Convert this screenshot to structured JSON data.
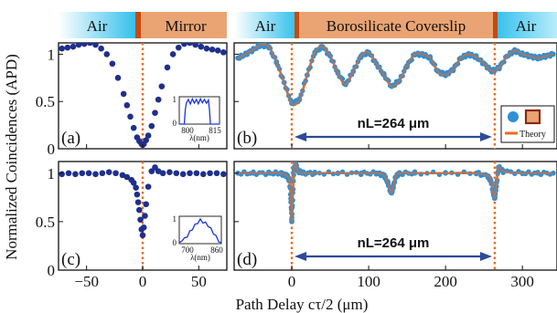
{
  "chart_data": {
    "type": "scatter",
    "ylabel": "Normalized Coincidences (APD)",
    "xlabel": "Path Delay cτ/2 (μm)",
    "colors": {
      "air_band": "#34c0ec",
      "coverslip_band": "#eaa474",
      "interface_line": "#c8490c",
      "dark_points": "#1f2f8c",
      "light_points": "#2e8ed6",
      "theory": "#f06a1e",
      "arrow": "#2c4a9a",
      "inset": "#1a35e0"
    },
    "legend": {
      "theory_label": "Theory",
      "position": "right"
    },
    "panels": [
      {
        "id": "a",
        "label": "(a)",
        "xlim": [
          -75,
          75
        ],
        "ylim": [
          0,
          1.12
        ],
        "yticks": [
          0,
          0.5,
          1
        ],
        "ytick_labels": [
          "0",
          "0.5",
          "1"
        ],
        "band_labels": [
          "Air",
          "Mirror"
        ],
        "interfaces": [
          0
        ],
        "series": [
          {
            "x": [
              -72,
              -67,
              -62,
              -57,
              -52,
              -47,
              -42,
              -37,
              -32,
              -27,
              -22,
              -17,
              -14,
              -11,
              -8,
              -5,
              -3,
              -1,
              0,
              1,
              3,
              5,
              8,
              11,
              14,
              17,
              22,
              27,
              32,
              37,
              42,
              47,
              52,
              57,
              62,
              67,
              72
            ],
            "y": [
              1.06,
              1.07,
              1.08,
              1.1,
              1.11,
              1.12,
              1.1,
              1.06,
              1.0,
              0.9,
              0.75,
              0.58,
              0.46,
              0.34,
              0.22,
              0.12,
              0.08,
              0.05,
              0.04,
              0.05,
              0.09,
              0.14,
              0.24,
              0.38,
              0.52,
              0.66,
              0.86,
              1.0,
              1.07,
              1.11,
              1.12,
              1.1,
              1.08,
              1.06,
              1.05,
              1.04,
              1.02
            ]
          }
        ],
        "inset": {
          "type": "spectrum",
          "xlabel": "λ(nm)",
          "xtick_labels": [
            "800",
            "815"
          ],
          "ytick_labels": [
            "1",
            "0"
          ],
          "x": [
            785,
            790,
            791,
            792,
            794,
            796,
            798,
            800,
            802,
            804,
            806,
            808,
            810,
            812,
            814,
            815,
            816,
            820,
            825
          ],
          "y": [
            0,
            0,
            0.5,
            0.85,
            0.9,
            0.82,
            0.92,
            0.86,
            0.9,
            0.83,
            0.92,
            0.87,
            0.9,
            0.85,
            0.88,
            0.6,
            0,
            0,
            0
          ]
        }
      },
      {
        "id": "b",
        "label": "(b)",
        "xlim": [
          -75,
          345
        ],
        "ylim": [
          0,
          1.12
        ],
        "band_labels": [
          "Air",
          "Borosilicate Coverslip",
          "Air"
        ],
        "interfaces": [
          0,
          264
        ],
        "annotation": "nL=264 μm",
        "series": [
          {
            "name": "",
            "x": [
              -70,
              -60,
              -50,
              -40,
              -30,
              -20,
              -10,
              0,
              10,
              20,
              30,
              40,
              50,
              60,
              70,
              80,
              90,
              100,
              110,
              120,
              130,
              140,
              150,
              160,
              170,
              180,
              190,
              200,
              210,
              220,
              230,
              240,
              250,
              260,
              270,
              280,
              290,
              300,
              310,
              320,
              330,
              340
            ],
            "y": [
              0.96,
              1.0,
              1.05,
              1.1,
              1.08,
              0.92,
              0.7,
              0.48,
              0.52,
              0.78,
              1.02,
              1.08,
              0.98,
              0.8,
              0.68,
              0.82,
              0.98,
              1.02,
              0.9,
              0.78,
              0.66,
              0.72,
              0.88,
              1.0,
              1.0,
              0.96,
              0.82,
              0.78,
              0.84,
              0.96,
              1.0,
              0.97,
              0.9,
              0.82,
              0.86,
              0.98,
              1.04,
              1.0,
              0.98,
              0.96,
              0.98,
              1.0
            ]
          }
        ]
      },
      {
        "id": "c",
        "label": "(c)",
        "xlim": [
          -75,
          75
        ],
        "ylim": [
          0,
          1.12
        ],
        "yticks": [
          0,
          0.5,
          1
        ],
        "ytick_labels": [
          "0",
          "0.5",
          "1"
        ],
        "xticks": [
          -50,
          0,
          50
        ],
        "xtick_labels": [
          "−50",
          "0",
          "50"
        ],
        "interfaces": [
          0
        ],
        "series": [
          {
            "x": [
              -72,
              -66,
              -60,
              -54,
              -48,
              -42,
              -36,
              -30,
              -24,
              -18,
              -14,
              -10,
              -8,
              -6,
              -5,
              -4,
              -3,
              -2,
              -1,
              0,
              1,
              2,
              3,
              5,
              8,
              11,
              14,
              18,
              24,
              30,
              36,
              42,
              48,
              54,
              60,
              66,
              72
            ],
            "y": [
              0.99,
              1.0,
              0.99,
              1.0,
              1.0,
              0.99,
              1.0,
              1.01,
              1.0,
              0.98,
              0.96,
              0.93,
              0.9,
              0.85,
              0.78,
              0.7,
              0.62,
              0.52,
              0.42,
              0.36,
              0.44,
              0.56,
              0.68,
              0.86,
              1.02,
              1.06,
              1.02,
              1.0,
              1.01,
              1.0,
              0.99,
              1.0,
              1.0,
              0.99,
              1.0,
              1.0,
              0.99
            ]
          }
        ],
        "inset": {
          "type": "spectrum",
          "xlabel": "λ(nm)",
          "xtick_labels": [
            "700",
            "860"
          ],
          "ytick_labels": [
            "1",
            "0"
          ],
          "x": [
            700,
            710,
            720,
            730,
            740,
            750,
            760,
            770,
            780,
            790,
            800,
            810,
            820,
            830,
            840,
            850,
            860
          ],
          "y": [
            0.04,
            0.1,
            0.18,
            0.3,
            0.44,
            0.58,
            0.7,
            0.82,
            0.9,
            0.84,
            0.78,
            0.7,
            0.56,
            0.42,
            0.26,
            0.12,
            0.04
          ]
        }
      },
      {
        "id": "d",
        "label": "(d)",
        "xlim": [
          -75,
          345
        ],
        "ylim": [
          0,
          1.12
        ],
        "xticks": [
          0,
          100,
          200,
          300
        ],
        "xtick_labels": [
          "0",
          "100",
          "200",
          "300"
        ],
        "interfaces": [
          0,
          264
        ],
        "annotation": "nL=264 μm",
        "series": [
          {
            "name": "",
            "x": [
              -70,
              -50,
              -30,
              -15,
              -8,
              -5,
              -3,
              -1,
              0,
              1,
              3,
              5,
              8,
              15,
              30,
              60,
              90,
              110,
              120,
              125,
              128,
              130,
              132,
              135,
              140,
              160,
              200,
              240,
              255,
              259,
              262,
              264,
              266,
              269,
              275,
              300,
              320,
              340
            ],
            "y": [
              1.0,
              1.0,
              1.0,
              1.0,
              0.98,
              0.96,
              0.92,
              0.7,
              0.5,
              0.72,
              1.04,
              1.1,
              1.02,
              1.0,
              1.0,
              1.0,
              1.0,
              1.0,
              0.98,
              0.9,
              0.82,
              0.8,
              0.86,
              0.96,
              1.0,
              1.0,
              1.0,
              1.0,
              0.97,
              0.92,
              0.8,
              0.74,
              0.86,
              1.06,
              1.02,
              1.0,
              1.0,
              1.0
            ]
          }
        ]
      }
    ]
  }
}
